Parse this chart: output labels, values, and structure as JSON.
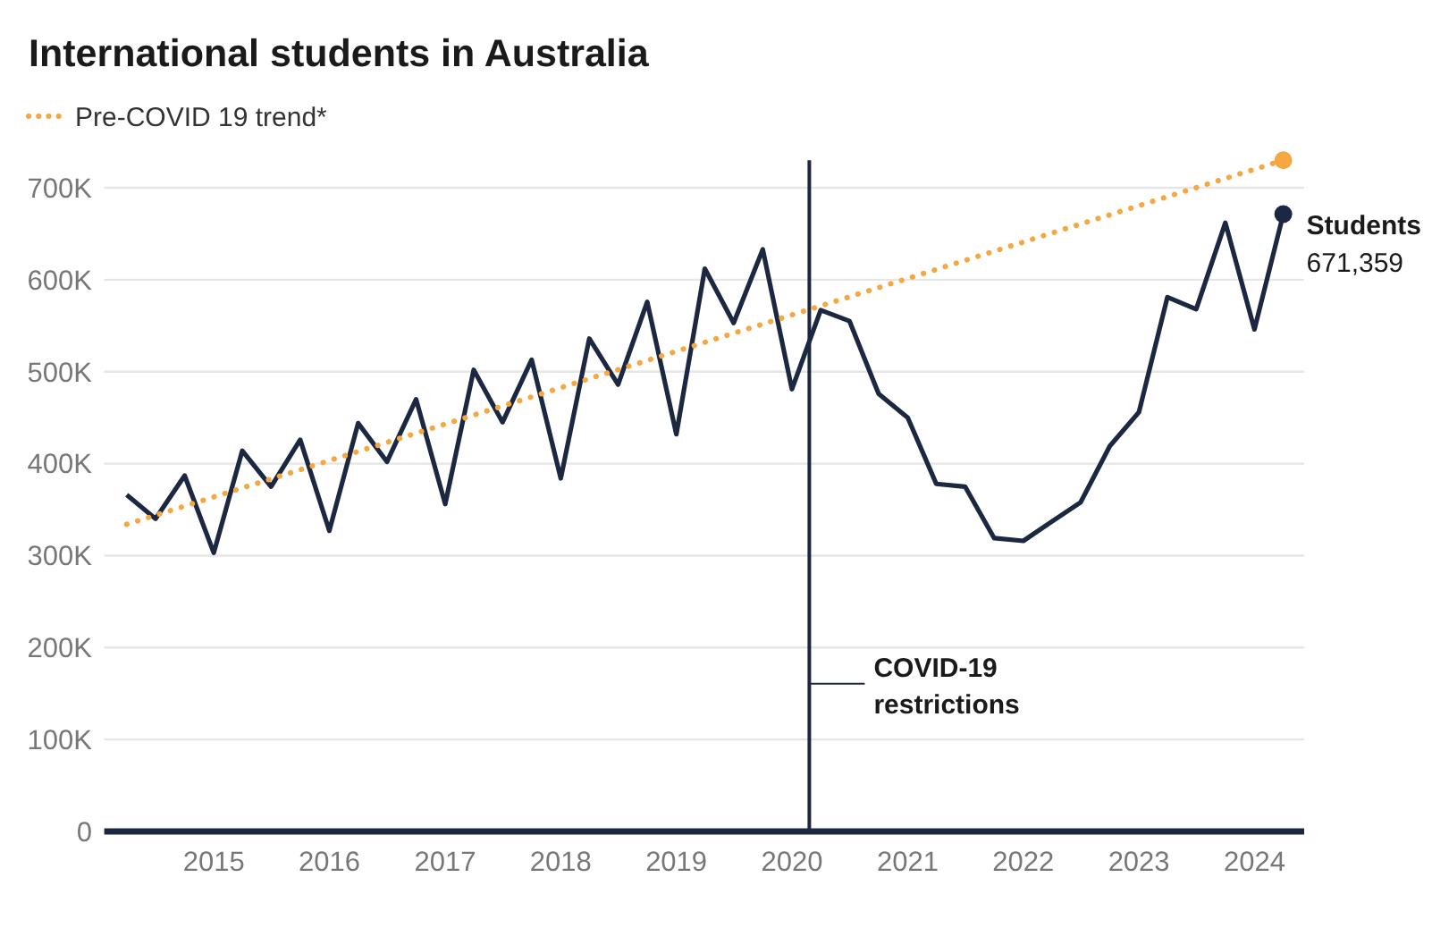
{
  "chart_data": {
    "type": "line",
    "title": "International students in Australia",
    "x": [
      "2014-04",
      "2014-07",
      "2014-10",
      "2015-01",
      "2015-04",
      "2015-07",
      "2015-10",
      "2016-01",
      "2016-04",
      "2016-07",
      "2016-10",
      "2017-01",
      "2017-04",
      "2017-07",
      "2017-10",
      "2018-01",
      "2018-04",
      "2018-07",
      "2018-10",
      "2019-01",
      "2019-04",
      "2019-07",
      "2019-10",
      "2020-01",
      "2020-04",
      "2020-07",
      "2020-10",
      "2021-01",
      "2021-04",
      "2021-07",
      "2021-10",
      "2022-01",
      "2022-04",
      "2022-07",
      "2022-10",
      "2023-01",
      "2023-04",
      "2023-07",
      "2023-10",
      "2024-01",
      "2024-04"
    ],
    "xlim": [
      "2014-01-20",
      "2024-06-06"
    ],
    "xticks": [
      "2015",
      "2016",
      "2017",
      "2018",
      "2019",
      "2020",
      "2021",
      "2022",
      "2023",
      "2024"
    ],
    "ylim": [
      0,
      730000
    ],
    "yticks": [
      0,
      {
        "value": 100000,
        "label": "100K"
      },
      {
        "value": 200000,
        "label": "200K"
      },
      {
        "value": 300000,
        "label": "300K"
      },
      {
        "value": 400000,
        "label": "400K"
      },
      {
        "value": 500000,
        "label": "500K"
      },
      {
        "value": 600000,
        "label": "600K"
      },
      {
        "value": 700000,
        "label": "700K"
      }
    ],
    "grid": "y",
    "legend": "top left",
    "series": [
      {
        "name": "Students",
        "color": "#1c2841",
        "values": [
          366000,
          340000,
          387000,
          303000,
          414000,
          375000,
          426000,
          327000,
          444000,
          402000,
          470000,
          356000,
          502000,
          445000,
          513000,
          384000,
          536000,
          486000,
          576000,
          432000,
          612000,
          553000,
          633000,
          481000,
          567000,
          555000,
          476000,
          450000,
          378000,
          375000,
          319000,
          316000,
          337000,
          358000,
          419000,
          456000,
          581000,
          568000,
          662000,
          546000,
          671359
        ],
        "value_labels": [
          null,
          null,
          null,
          null,
          null,
          null,
          null,
          null,
          null,
          null,
          null,
          null,
          null,
          null,
          null,
          null,
          null,
          null,
          null,
          null,
          null,
          null,
          null,
          null,
          null,
          null,
          null,
          null,
          null,
          null,
          null,
          null,
          null,
          null,
          null,
          null,
          null,
          null,
          null,
          null,
          "671,359"
        ]
      },
      {
        "name": "Pre-COVID 19 trend*",
        "color": "#f5a742",
        "x": [
          "2014-04",
          "2024-04"
        ],
        "values": [
          334000,
          730000
        ],
        "line_style": "dotted"
      },
      {
        "type": "scatter",
        "color": "#f5a742",
        "x": [
          "2024-04"
        ],
        "values": [
          730000
        ],
        "marker": "circle"
      },
      {
        "type": "scatter",
        "color": "#1c2841",
        "x": [
          "2024-04"
        ],
        "values": [
          671359
        ],
        "marker": "circle"
      }
    ],
    "ref_lines": [
      {
        "axis": "x",
        "value": "2020-02-25",
        "label": "COVID-19 restrictions",
        "color": "#1c2841"
      }
    ]
  }
}
